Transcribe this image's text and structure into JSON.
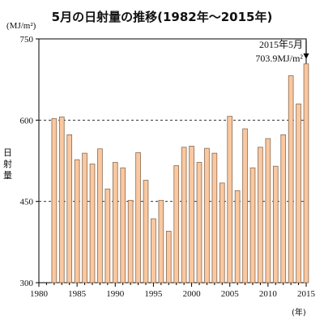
{
  "title": "5月の日射量の推移(1982年～2015年)",
  "unit_label": "(MJ/m²)",
  "ylabel": "日射量",
  "xunit": "(年)",
  "annotation": {
    "line1": "2015年5月",
    "line2": "703.9MJ/m²"
  },
  "colors": {
    "bar_fill": "#fac8a0",
    "bar_stroke": "#8a6a50",
    "axis": "#000000"
  },
  "chart_data": {
    "type": "bar",
    "title": "5月の日射量の推移(1982年～2015年)",
    "xlabel": "(年)",
    "ylabel": "日射量",
    "unit": "(MJ/m²)",
    "xlim": [
      1980,
      2015
    ],
    "ylim": [
      300,
      750
    ],
    "yticks": [
      300,
      450,
      600,
      750
    ],
    "xticks": [
      1980,
      1985,
      1990,
      1995,
      2000,
      2005,
      2010,
      2015
    ],
    "grid": "dashed horizontal lines at 450 and 600",
    "x": [
      1982,
      1983,
      1984,
      1985,
      1986,
      1987,
      1988,
      1989,
      1990,
      1991,
      1992,
      1993,
      1994,
      1995,
      1996,
      1997,
      1998,
      1999,
      2000,
      2001,
      2002,
      2003,
      2004,
      2005,
      2006,
      2007,
      2008,
      2009,
      2010,
      2011,
      2012,
      2013,
      2014,
      2015
    ],
    "values": [
      603,
      606,
      573,
      527,
      539,
      519,
      547,
      473,
      522,
      512,
      452,
      540,
      489,
      418,
      452,
      395,
      516,
      550,
      552,
      522,
      548,
      539,
      484,
      607,
      470,
      584,
      512,
      550,
      566,
      515,
      573,
      682,
      630,
      703.9
    ]
  }
}
